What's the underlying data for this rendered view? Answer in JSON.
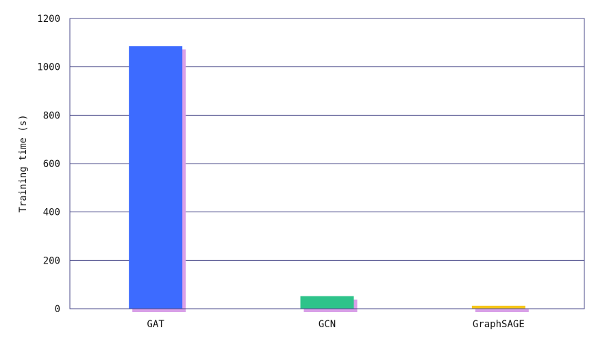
{
  "chart_data": {
    "type": "bar",
    "title": "",
    "xlabel": "",
    "ylabel": "Training time (s)",
    "categories": [
      "GAT",
      "GCN",
      "GraphSAGE"
    ],
    "values": [
      1086,
      52,
      12
    ],
    "colors": [
      "#3d6bff",
      "#2ec38a",
      "#f5c518"
    ],
    "shadow_color": "#d9a0e8",
    "axis_color": "#4a4a8a",
    "grid_color": "#4a4a8a",
    "ylim": [
      0,
      1200
    ],
    "yticks": [
      0,
      200,
      400,
      600,
      800,
      1000,
      1200
    ],
    "grid": true,
    "legend": "none"
  }
}
